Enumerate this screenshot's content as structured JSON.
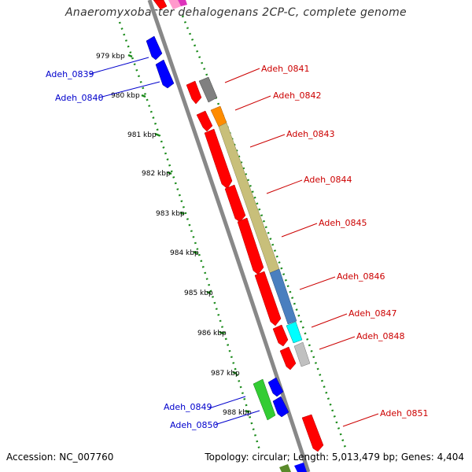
{
  "title": "Anaeromyxobacter dehalogenans 2CP-C, complete genome",
  "accession": "Accession: NC_007760",
  "summary": "Topology: circular; Length: 5,013,479 bp; Genes: 4,404",
  "colors": {
    "backbone": "#888888",
    "tick": "#1a8a1a",
    "label_forward": "#cc0000",
    "label_reverse": "#0000cc"
  },
  "kbp_labels": [
    "979 kbp",
    "980 kbp",
    "981 kbp",
    "982 kbp",
    "983 kbp",
    "984 kbp",
    "985 kbp",
    "986 kbp",
    "987 kbp",
    "988 kbp"
  ],
  "gene_labels_right": [
    "Adeh_0841",
    "Adeh_0842",
    "Adeh_0843",
    "Adeh_0844",
    "Adeh_0845",
    "Adeh_0846",
    "Adeh_0847",
    "Adeh_0848",
    "Adeh_0851"
  ],
  "gene_labels_left": [
    "Adeh_0839",
    "Adeh_0840",
    "Adeh_0849",
    "Adeh_0850"
  ]
}
